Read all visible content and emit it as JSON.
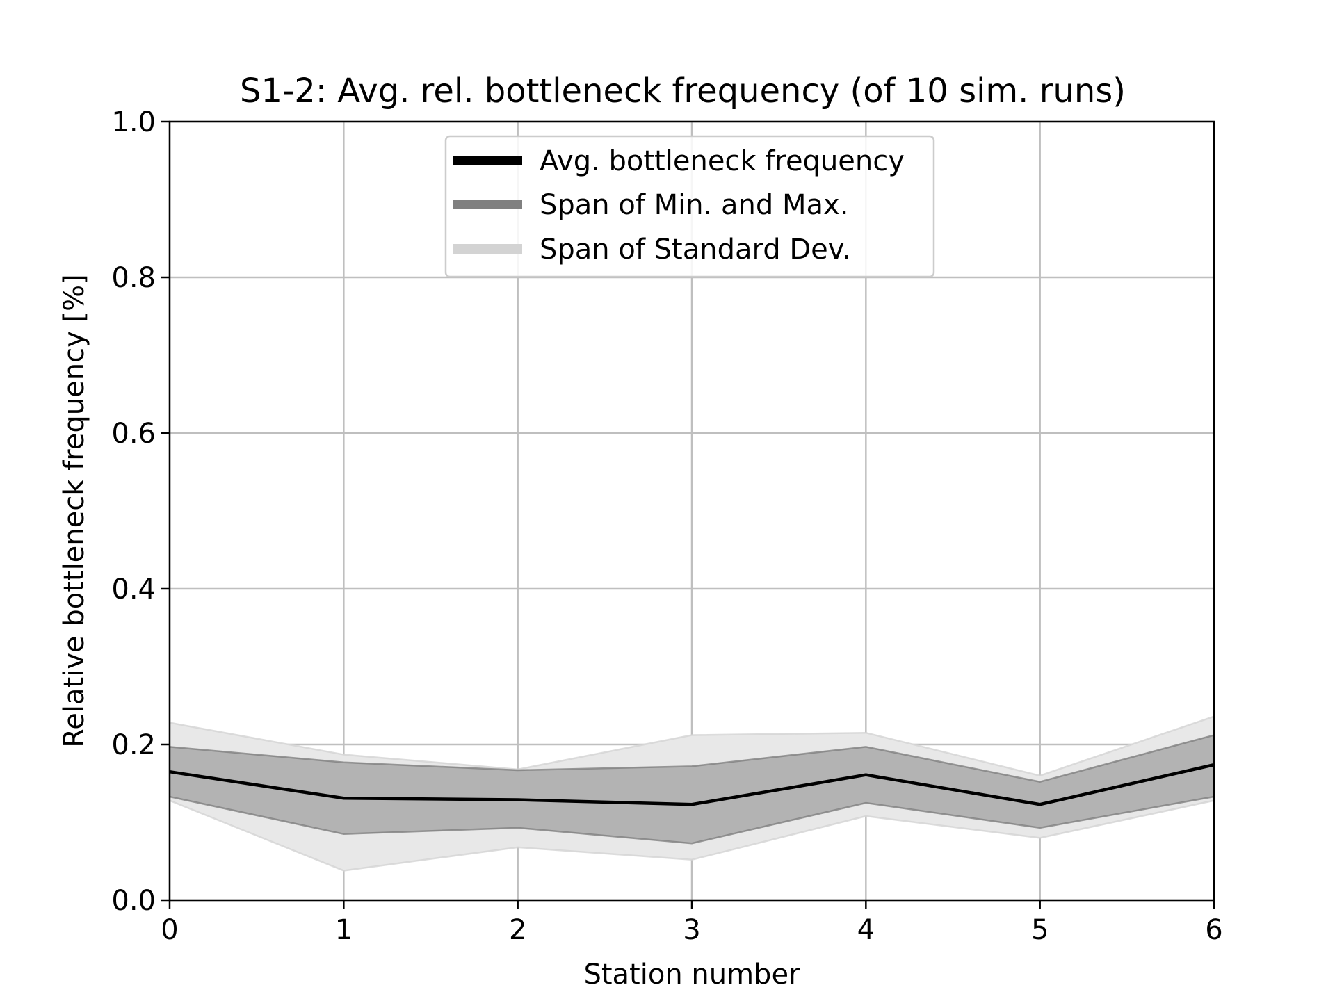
{
  "chart_data": {
    "type": "line",
    "title": "S1-2: Avg. rel. bottleneck frequency (of 10 sim. runs)",
    "xlabel": "Station number",
    "ylabel": "Relative bottleneck frequency [%]",
    "xlim": [
      0,
      6
    ],
    "ylim": [
      0,
      1.0
    ],
    "x": [
      0,
      1,
      2,
      3,
      4,
      5,
      6
    ],
    "xticks": [
      "0",
      "1",
      "2",
      "3",
      "4",
      "5",
      "6"
    ],
    "yticks": [
      "0.0",
      "0.2",
      "0.4",
      "0.6",
      "0.8",
      "1.0"
    ],
    "grid": true,
    "legend_position": "upper center",
    "series": [
      {
        "name": "Avg. bottleneck frequency",
        "values": [
          0.165,
          0.131,
          0.129,
          0.123,
          0.161,
          0.123,
          0.174
        ]
      }
    ],
    "bands": [
      {
        "name": "Span of Min. and Max.",
        "lower": [
          0.133,
          0.085,
          0.093,
          0.073,
          0.125,
          0.093,
          0.133
        ],
        "upper": [
          0.197,
          0.177,
          0.167,
          0.172,
          0.197,
          0.152,
          0.212
        ]
      },
      {
        "name": "Span of Standard Dev.",
        "lower": [
          0.128,
          0.038,
          0.068,
          0.052,
          0.108,
          0.08,
          0.128
        ],
        "upper": [
          0.228,
          0.187,
          0.168,
          0.212,
          0.215,
          0.16,
          0.236
        ]
      }
    ],
    "colors": {
      "avg": "#000000",
      "minmax": "#808080",
      "minmax_fill": "#b3b3b3",
      "std": "#d3d3d3",
      "std_fill": "#e8e8e8",
      "grid": "#bfbfbf"
    }
  }
}
